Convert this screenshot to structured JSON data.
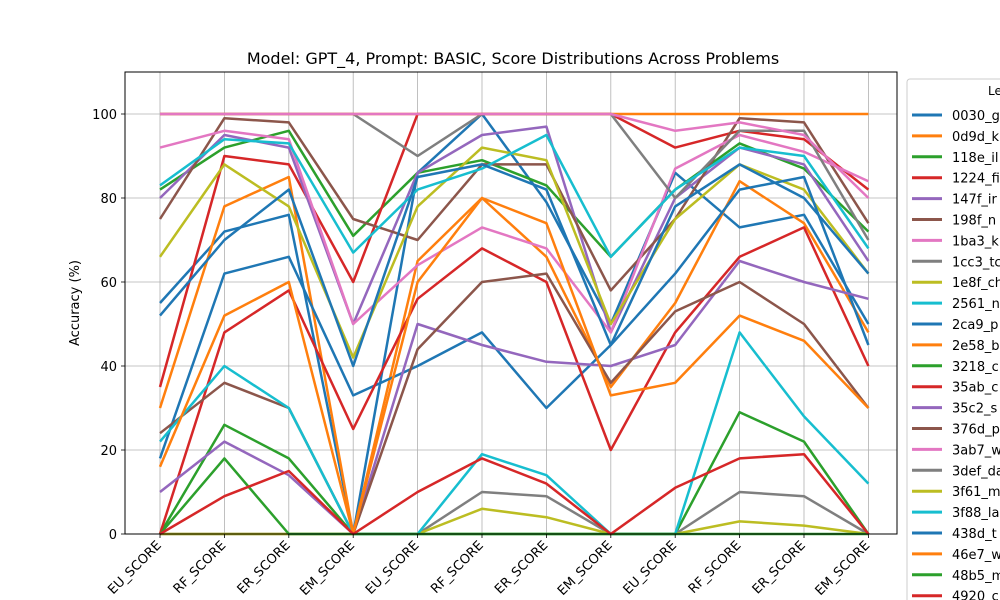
{
  "chart_data": {
    "type": "line",
    "title": "Model: GPT_4, Prompt: BASIC, Score Distributions Across Problems",
    "ylabel": "Accuracy (%)",
    "xlabel": "",
    "ylim": [
      0,
      110
    ],
    "yticks": [
      0,
      20,
      40,
      60,
      80,
      100
    ],
    "grid": true,
    "legend_position": "right (cropped)",
    "legend_title": "Le",
    "categories": [
      "EU_SCORE",
      "RF_SCORE",
      "ER_SCORE",
      "EM_SCORE",
      "EU_SCORE",
      "RF_SCORE",
      "ER_SCORE",
      "EM_SCORE",
      "EU_SCORE",
      "RF_SCORE",
      "ER_SCORE",
      "EM_SCORE"
    ],
    "series": [
      {
        "name": "0030_g",
        "color": "#1f77b4",
        "values": [
          55,
          72,
          76,
          0,
          86,
          100,
          79,
          50,
          86,
          73,
          76,
          50
        ]
      },
      {
        "name": "0d9d_k",
        "color": "#ff7f0e",
        "values": [
          30,
          78,
          85,
          0,
          65,
          80,
          66,
          35,
          55,
          84,
          74,
          48
        ]
      },
      {
        "name": "118e_il",
        "color": "#2ca02c",
        "values": [
          82,
          92,
          96,
          71,
          86,
          89,
          83,
          66,
          82,
          93,
          87,
          72
        ]
      },
      {
        "name": "1224_fi",
        "color": "#d62728",
        "values": [
          35,
          90,
          88,
          60,
          100,
          100,
          100,
          100,
          92,
          96,
          94,
          82
        ]
      },
      {
        "name": "147f_ir",
        "color": "#9467bd",
        "values": [
          80,
          95,
          92,
          50,
          86,
          95,
          97,
          48,
          80,
          92,
          88,
          65
        ]
      },
      {
        "name": "198f_n",
        "color": "#8c564b",
        "values": [
          75,
          99,
          98,
          75,
          70,
          88,
          88,
          58,
          75,
          99,
          98,
          74
        ]
      },
      {
        "name": "1ba3_k",
        "color": "#e377c2",
        "values": [
          92,
          96,
          94,
          50,
          64,
          73,
          68,
          48,
          87,
          95,
          91,
          84
        ]
      },
      {
        "name": "1cc3_tc",
        "color": "#7f7f7f",
        "values": [
          100,
          100,
          100,
          100,
          90,
          100,
          100,
          100,
          80,
          96,
          96,
          70
        ]
      },
      {
        "name": "1e8f_ch",
        "color": "#bcbd22",
        "values": [
          66,
          88,
          78,
          42,
          78,
          92,
          89,
          50,
          75,
          88,
          82,
          62
        ]
      },
      {
        "name": "2561_n",
        "color": "#17becf",
        "values": [
          83,
          94,
          93,
          67,
          82,
          87,
          95,
          66,
          82,
          92,
          90,
          68
        ]
      },
      {
        "name": "2ca9_p",
        "color": "#1f77b4",
        "values": [
          18,
          62,
          66,
          33,
          40,
          48,
          30,
          45,
          62,
          82,
          85,
          45
        ]
      },
      {
        "name": "2e58_b",
        "color": "#ff7f0e",
        "values": [
          100,
          100,
          100,
          100,
          100,
          100,
          100,
          100,
          100,
          100,
          100,
          100
        ]
      },
      {
        "name": "3218_c",
        "color": "#2ca02c",
        "values": [
          0,
          26,
          18,
          0,
          0,
          0,
          0,
          0,
          0,
          29,
          22,
          0
        ]
      },
      {
        "name": "35ab_c",
        "color": "#d62728",
        "values": [
          0,
          48,
          58,
          25,
          56,
          68,
          60,
          20,
          48,
          66,
          73,
          40
        ]
      },
      {
        "name": "35c2_s",
        "color": "#9467bd",
        "values": [
          10,
          22,
          14,
          0,
          50,
          45,
          41,
          40,
          45,
          65,
          60,
          56
        ]
      },
      {
        "name": "376d_p",
        "color": "#8c564b",
        "values": [
          24,
          36,
          30,
          0,
          44,
          60,
          62,
          36,
          53,
          60,
          50,
          30
        ]
      },
      {
        "name": "3ab7_w",
        "color": "#e377c2",
        "values": [
          100,
          100,
          100,
          100,
          100,
          100,
          100,
          100,
          96,
          98,
          95,
          80
        ]
      },
      {
        "name": "3def_da",
        "color": "#7f7f7f",
        "values": [
          0,
          0,
          0,
          0,
          0,
          10,
          9,
          0,
          0,
          10,
          9,
          0
        ]
      },
      {
        "name": "3f61_m",
        "color": "#bcbd22",
        "values": [
          0,
          0,
          0,
          0,
          0,
          6,
          4,
          0,
          0,
          3,
          2,
          0
        ]
      },
      {
        "name": "3f88_la",
        "color": "#17becf",
        "values": [
          22,
          40,
          30,
          0,
          0,
          19,
          14,
          0,
          0,
          48,
          28,
          12
        ]
      },
      {
        "name": "438d_t",
        "color": "#1f77b4",
        "values": [
          52,
          70,
          82,
          40,
          85,
          88,
          82,
          45,
          78,
          88,
          80,
          62
        ]
      },
      {
        "name": "46e7_w",
        "color": "#ff7f0e",
        "values": [
          16,
          52,
          60,
          0,
          60,
          80,
          74,
          33,
          36,
          52,
          46,
          30
        ]
      },
      {
        "name": "48b5_m",
        "color": "#2ca02c",
        "values": [
          0,
          18,
          0,
          0,
          0,
          0,
          0,
          0,
          0,
          0,
          0,
          0
        ]
      },
      {
        "name": "4920_c",
        "color": "#d62728",
        "values": [
          0,
          9,
          15,
          0,
          10,
          18,
          12,
          0,
          11,
          18,
          19,
          0
        ]
      }
    ]
  }
}
